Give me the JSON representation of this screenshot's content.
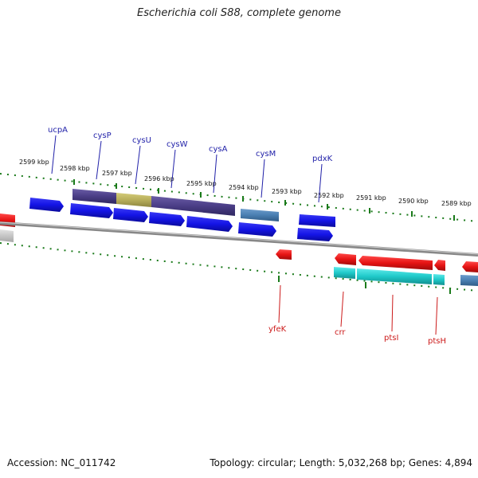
{
  "title": "Escherichia coli S88, complete genome",
  "footer": {
    "accession": "Accession: NC_011742",
    "summary": "Topology: circular; Length: 5,032,268 bp; Genes: 4,894"
  },
  "colors": {
    "forward_gene": "#1414e6",
    "reverse_gene": "#e61414",
    "feature_purple": "#4a3d86",
    "feature_olive": "#b7ae5a",
    "feature_steel": "#4a7fb2",
    "feature_cyan": "#1fc9c9",
    "tick": "#1a7a1a",
    "backbone": "#888888",
    "label_forward": "#1f1fa8",
    "label_reverse": "#cc1a1a"
  },
  "kbp_ticks": [
    "2599 kbp",
    "2598 kbp",
    "2597 kbp",
    "2596 kbp",
    "2595 kbp",
    "2594 kbp",
    "2593 kbp",
    "2592 kbp",
    "2591 kbp",
    "2590 kbp",
    "2589 kbp"
  ],
  "top_genes": [
    "ucpA",
    "cysP",
    "cysU",
    "cysW",
    "cysA",
    "cysM",
    "pdxK"
  ],
  "bottom_genes": [
    "yfeK",
    "crr",
    "ptsI",
    "ptsH"
  ]
}
